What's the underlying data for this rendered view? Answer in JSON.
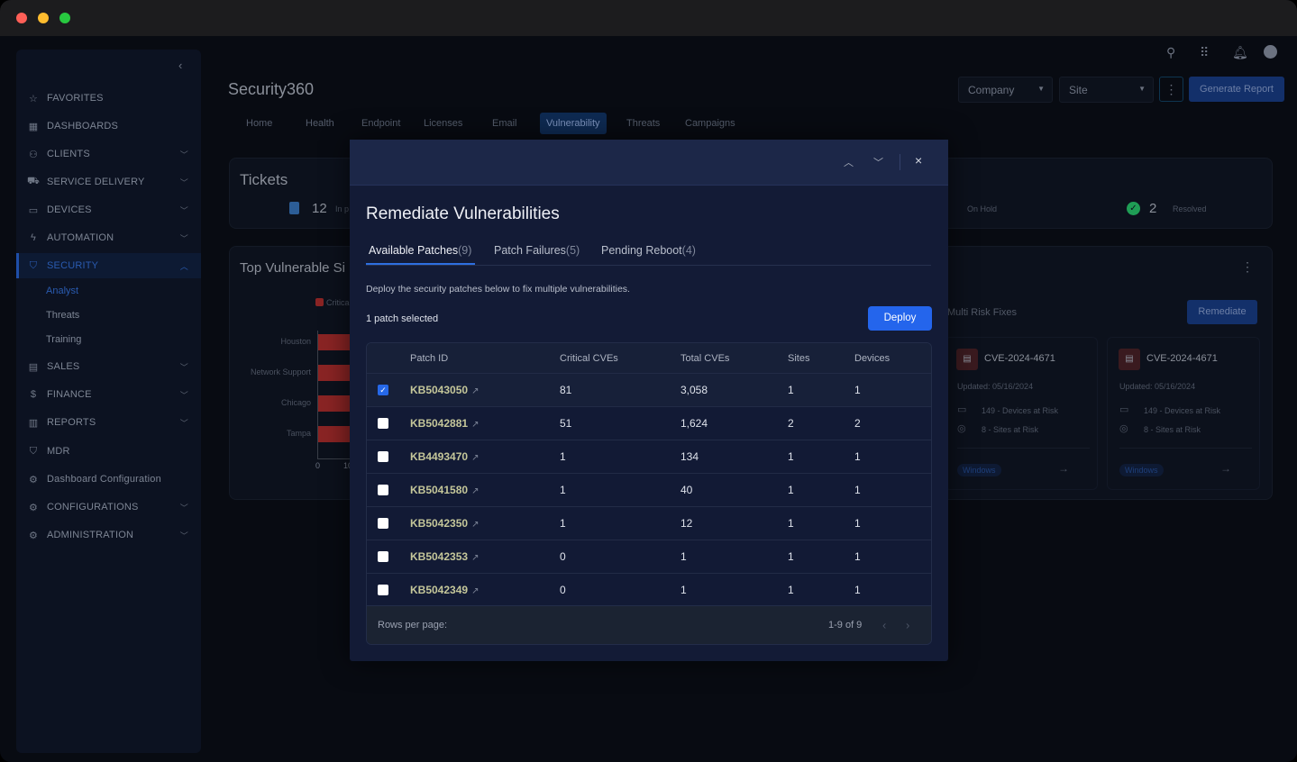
{
  "app": {
    "title": "Security360"
  },
  "topbar": {
    "icons": [
      "search-icon",
      "apps-grid-icon",
      "bell-icon",
      "account-icon"
    ],
    "company": "Company",
    "site": "Site",
    "generate_report": "Generate Report"
  },
  "sidebar": {
    "items": [
      {
        "label": "FAVORITES",
        "icon": "☆",
        "chev": false
      },
      {
        "label": "DASHBOARDS",
        "icon": "▦",
        "chev": false
      },
      {
        "label": "CLIENTS",
        "icon": "⚇",
        "chev": true
      },
      {
        "label": "SERVICE DELIVERY",
        "icon": "⛟",
        "chev": true
      },
      {
        "label": "DEVICES",
        "icon": "▭",
        "chev": true
      },
      {
        "label": "AUTOMATION",
        "icon": "ϟ",
        "chev": true
      },
      {
        "label": "SECURITY",
        "icon": "⛉",
        "chev": true,
        "active": true
      },
      {
        "label": "SALES",
        "icon": "▤",
        "chev": true
      },
      {
        "label": "FINANCE",
        "icon": "$",
        "chev": true
      },
      {
        "label": "REPORTS",
        "icon": "▥",
        "chev": true
      },
      {
        "label": "MDR",
        "icon": "⛉",
        "chev": false
      },
      {
        "label": "Dashboard Configuration",
        "icon": "⚙",
        "chev": false
      },
      {
        "label": "CONFIGURATIONS",
        "icon": "⚙",
        "chev": true
      },
      {
        "label": "ADMINISTRATION",
        "icon": "⚙",
        "chev": true
      }
    ],
    "sub": [
      "Analyst",
      "Threats",
      "Training"
    ]
  },
  "tabs": [
    "Home",
    "Health",
    "Endpoint",
    "Licenses",
    "Email",
    "Vulnerability",
    "Threats",
    "Campaigns"
  ],
  "active_tab": "Vulnerability",
  "tickets": {
    "title": "Tickets",
    "in_progress": "12",
    "in_progress_label": "In p",
    "on_hold_label": "On Hold",
    "resolved": "2",
    "resolved_label": "Resolved"
  },
  "top_sites": {
    "title": "Top Vulnerable Si",
    "legend": "Critica",
    "categories": [
      "Houston",
      "Network Support",
      "Chicago",
      "Tampa"
    ],
    "ticks": [
      "0",
      "10"
    ]
  },
  "risk": {
    "label": "Multi Risk Fixes",
    "remediate": "Remediate",
    "cards": [
      {
        "cve": "CVE-2024-4671",
        "updated": "Updated: 05/16/2024",
        "devices": "149 - Devices at Risk",
        "sites": "8 - Sites at Risk",
        "tag": "Windows"
      },
      {
        "cve": "CVE-2024-4671",
        "updated": "Updated: 05/16/2024",
        "devices": "149 - Devices at Risk",
        "sites": "8 - Sites at Risk",
        "tag": "Windows"
      }
    ]
  },
  "modal": {
    "title": "Remediate Vulnerabilities",
    "tabs": [
      {
        "label": "Available Patches",
        "count": "(9)"
      },
      {
        "label": "Patch Failures",
        "count": "(5)"
      },
      {
        "label": "Pending Reboot",
        "count": "(4)"
      }
    ],
    "description": "Deploy the security patches below to fix multiple vulnerabilities.",
    "selected": "1 patch selected",
    "deploy": "Deploy",
    "columns": [
      "Patch ID",
      "Critical CVEs",
      "Total CVEs",
      "Sites",
      "Devices"
    ],
    "rows": [
      {
        "id": "KB5043050",
        "critical": "81",
        "total": "3,058",
        "sites": "1",
        "devices": "1",
        "checked": true
      },
      {
        "id": "KB5042881",
        "critical": "51",
        "total": "1,624",
        "sites": "2",
        "devices": "2",
        "checked": false
      },
      {
        "id": "KB4493470",
        "critical": "1",
        "total": "134",
        "sites": "1",
        "devices": "1",
        "checked": false
      },
      {
        "id": "KB5041580",
        "critical": "1",
        "total": "40",
        "sites": "1",
        "devices": "1",
        "checked": false
      },
      {
        "id": "KB5042350",
        "critical": "1",
        "total": "12",
        "sites": "1",
        "devices": "1",
        "checked": false
      },
      {
        "id": "KB5042353",
        "critical": "0",
        "total": "1",
        "sites": "1",
        "devices": "1",
        "checked": false
      },
      {
        "id": "KB5042349",
        "critical": "0",
        "total": "1",
        "sites": "1",
        "devices": "1",
        "checked": false
      }
    ],
    "rows_per_page": "Rows per page:",
    "range": "1-9 of 9"
  },
  "colors": {
    "accent": "#2668e8",
    "patch_id": "#c5c79a",
    "critical_bar": "#8a2424",
    "resolved": "#1f9d55"
  }
}
